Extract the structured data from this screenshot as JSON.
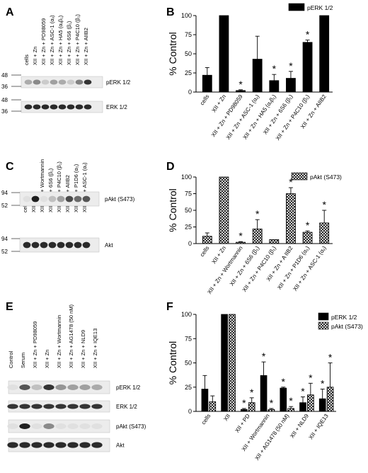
{
  "chart_data": [
    {
      "panel": "A",
      "type": "table",
      "lanes": [
        "cells",
        "XII + Zn",
        "XII + Zn + PD98059",
        "XII + Zn + ASC-1 (αᵥ)",
        "XII + Zn + HA5 (αᵥβ₁)",
        "XII + Zn + 6S6 (β₁)",
        "XII + Zn + P4C10 (β₁)",
        "XII + Zn + AIIB2"
      ],
      "blots": [
        {
          "label": "pERK 1/2",
          "intensity": [
            0.3,
            0.45,
            0.15,
            0.35,
            0.3,
            0.15,
            0.5,
            0.85
          ]
        },
        {
          "label": "ERK 1/2",
          "intensity": [
            0.9,
            0.9,
            0.9,
            0.9,
            0.9,
            0.9,
            0.9,
            0.9
          ]
        }
      ],
      "markers": [
        {
          "label": "48"
        },
        {
          "label": "36"
        },
        {
          "label": "48"
        },
        {
          "label": "36"
        }
      ]
    },
    {
      "panel": "B",
      "type": "bar",
      "ylabel": "% Control",
      "ylim": [
        0,
        100
      ],
      "yticks": [
        0,
        25,
        50,
        75,
        100
      ],
      "legend": "pERK 1/2",
      "categories": [
        "cells",
        "XII + Zn",
        "XII + Zn + PD98059",
        "XII + Zn + ASC-1 (αᵥ)",
        "XII + Zn + HA5 (αᵥβ₁)",
        "XII + Zn + 6S6 (β₁)",
        "XII + Zn + P4C10 (β₁)",
        "XII + Zn + AIIB2"
      ],
      "series": [
        {
          "name": "pERK 1/2",
          "values": [
            22,
            100,
            2,
            43,
            15,
            18,
            65,
            100
          ],
          "err": [
            10,
            0,
            1,
            30,
            8,
            9,
            3,
            0
          ],
          "sig": [
            false,
            false,
            true,
            false,
            true,
            true,
            true,
            false
          ]
        }
      ]
    },
    {
      "panel": "C",
      "type": "table",
      "lanes": [
        "cells",
        "XII + Zn",
        "XII + Zn + Wortmannin",
        "XII + Zn + 6S6 (β₁)",
        "XII + Zn + P4C10 (β₁)",
        "XII + Zn + AIIB2",
        "XII + Zn + P1D6 (α₅)",
        "XII + Zn + ASC-1 (αᵥ)"
      ],
      "blots": [
        {
          "label": "pAkt (S473)",
          "intensity": [
            0.05,
            0.95,
            0.05,
            0.2,
            0.35,
            0.75,
            0.6,
            0.7
          ]
        },
        {
          "label": "Akt",
          "intensity": [
            0.9,
            0.9,
            0.9,
            0.9,
            0.9,
            0.9,
            0.9,
            0.9
          ]
        }
      ],
      "markers": [
        {
          "label": "94"
        },
        {
          "label": "52"
        },
        {
          "label": "94"
        },
        {
          "label": "52"
        }
      ]
    },
    {
      "panel": "D",
      "type": "bar",
      "ylabel": "% Control",
      "ylim": [
        0,
        100
      ],
      "yticks": [
        0,
        25,
        50,
        75,
        100
      ],
      "legend": "pAkt (S473)",
      "categories": [
        "cells",
        "XII + Zn",
        "XII + Zn + Wortmannin",
        "XII + Zn + 6S6 (β₁)",
        "XII + Zn + P4C10 (β₁)",
        "XII + Zn + A IIB2",
        "XII + Zn + P1D6 (α₅)",
        "XII + Zn + ASC-1 (αᵥ)"
      ],
      "series": [
        {
          "name": "pAkt (S473)",
          "values": [
            11,
            100,
            2,
            22,
            6,
            75,
            17,
            31
          ],
          "err": [
            5,
            0,
            1,
            14,
            0,
            9,
            2,
            19
          ],
          "sig": [
            false,
            false,
            true,
            true,
            false,
            true,
            true,
            true
          ]
        }
      ]
    },
    {
      "panel": "E",
      "type": "table",
      "lanes": [
        "Control",
        "Serum",
        "XII + Zn + PD98059",
        "XII + Zn",
        "XII + Zn + Wortmannin",
        "XII + Zn + AG1478 (50 nM)",
        "XII + Zn + NLD9",
        "XII + Zn + IQE13"
      ],
      "blots": [
        {
          "label": "pERK 1/2",
          "intensity": [
            0.05,
            0.7,
            0.2,
            0.85,
            0.4,
            0.35,
            0.35,
            0.3
          ]
        },
        {
          "label": "ERK 1/2",
          "intensity": [
            0.85,
            0.85,
            0.85,
            0.85,
            0.85,
            0.85,
            0.85,
            0.85
          ]
        },
        {
          "label": "pAkt (S473)",
          "intensity": [
            0.05,
            0.95,
            0.05,
            0.45,
            0.05,
            0.05,
            0.05,
            0.05
          ]
        },
        {
          "label": "Akt",
          "intensity": [
            0.9,
            0.9,
            0.9,
            0.9,
            0.9,
            0.9,
            0.9,
            0.9
          ]
        }
      ]
    },
    {
      "panel": "F",
      "type": "bar",
      "ylabel": "% Control",
      "ylim": [
        0,
        100
      ],
      "yticks": [
        0,
        25,
        50,
        75,
        100
      ],
      "categories": [
        "cells",
        "XII",
        "XII + PD",
        "XII + Wortmannin",
        "XII + AG1478 (50 nM)",
        "XII + NLD9",
        "XII + IQE13"
      ],
      "series": [
        {
          "name": "pERK 1/2",
          "values": [
            23,
            100,
            2,
            37,
            24,
            9,
            13
          ],
          "err": [
            14,
            0,
            1,
            14,
            1,
            6,
            10
          ],
          "sig": [
            false,
            false,
            true,
            true,
            true,
            true,
            true
          ]
        },
        {
          "name": "pAkt (S473)",
          "values": [
            10,
            100,
            9,
            2,
            3,
            17,
            25
          ],
          "err": [
            6,
            0,
            5,
            1,
            2,
            12,
            25
          ],
          "sig": [
            false,
            false,
            true,
            true,
            true,
            true,
            true
          ]
        }
      ]
    }
  ]
}
